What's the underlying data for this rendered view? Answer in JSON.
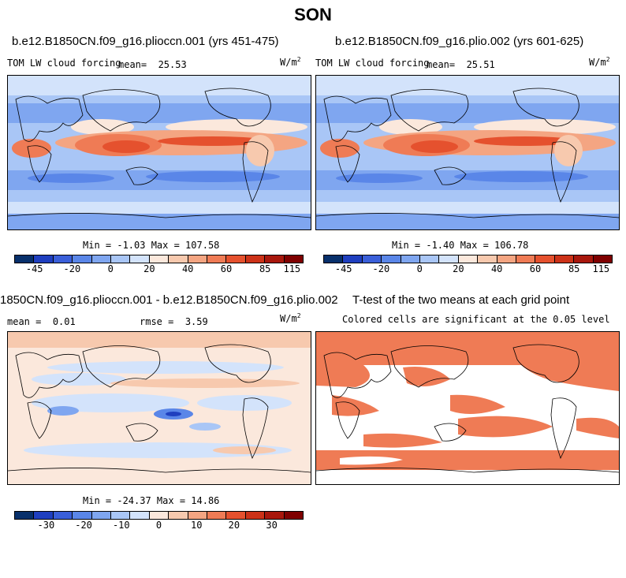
{
  "figure_title": "SON",
  "panels": [
    {
      "title": "b.e12.B1850CN.f09_g16.plioccn.001 (yrs 451-475)",
      "variable": "TOM LW cloud forcing",
      "stat_left_label": "mean=",
      "stat_left_value": "25.53",
      "stat_right_label": "",
      "stat_right_value": "",
      "units_base": "W/m",
      "units_exp": "2",
      "min_text": "Min =  -1.03 Max = 107.58"
    },
    {
      "title": "b.e12.B1850CN.f09_g16.plio.002 (yrs 601-625)",
      "variable": "TOM LW cloud forcing",
      "stat_left_label": "mean=",
      "stat_left_value": "25.51",
      "stat_right_label": "",
      "stat_right_value": "",
      "units_base": "W/m",
      "units_exp": "2",
      "min_text": "Min =  -1.40 Max = 106.78"
    },
    {
      "title": "1850CN.f09_g16.plioccn.001 - b.e12.B1850CN.f09_g16.plio.002",
      "variable": "",
      "stat_left_label": "mean =",
      "stat_left_value": "0.01",
      "stat_right_label": "rmse =",
      "stat_right_value": "3.59",
      "units_base": "W/m",
      "units_exp": "2",
      "min_text": "Min = -24.37 Max =  14.86"
    },
    {
      "title": "T-test of the two means at each grid point",
      "subtitle": "Colored cells are significant at the 0.05 level"
    }
  ],
  "colorbars": {
    "main": {
      "colors": [
        "#08306b",
        "#1f3fbf",
        "#3a5fd9",
        "#5a86e8",
        "#7fa6f0",
        "#a9c6f6",
        "#d3e3fb",
        "#fbe8dc",
        "#f7c9ae",
        "#f4a582",
        "#ef7b55",
        "#e5512e",
        "#cc3218",
        "#a8170c",
        "#7f0000"
      ],
      "tick_labels": [
        "-45",
        "-20",
        "0",
        "20",
        "40",
        "60",
        "85",
        "115"
      ]
    },
    "diff": {
      "colors": [
        "#08306b",
        "#1f3fbf",
        "#3a5fd9",
        "#5a86e8",
        "#7fa6f0",
        "#a9c6f6",
        "#d3e3fb",
        "#fbe8dc",
        "#f7c9ae",
        "#f4a582",
        "#ef7b55",
        "#e5512e",
        "#cc3218",
        "#a8170c",
        "#7f0000"
      ],
      "tick_labels": [
        "-30",
        "-20",
        "-10",
        "0",
        "10",
        "20",
        "30"
      ]
    }
  },
  "chart_data": [
    {
      "type": "heatmap",
      "title": "b.e12.B1850CN.f09_g16.plioccn.001 (yrs 451-475)",
      "variable": "TOM LW cloud forcing",
      "units": "W/m^2",
      "mean": 25.53,
      "min": -1.03,
      "max": 107.58,
      "color_levels": [
        -45,
        -20,
        0,
        20,
        40,
        60,
        85,
        115
      ]
    },
    {
      "type": "heatmap",
      "title": "b.e12.B1850CN.f09_g16.plio.002 (yrs 601-625)",
      "variable": "TOM LW cloud forcing",
      "units": "W/m^2",
      "mean": 25.51,
      "min": -1.4,
      "max": 106.78,
      "color_levels": [
        -45,
        -20,
        0,
        20,
        40,
        60,
        85,
        115
      ]
    },
    {
      "type": "heatmap",
      "title": "1850CN.f09_g16.plioccn.001 - b.e12.B1850CN.f09_g16.plio.002",
      "units": "W/m^2",
      "mean": 0.01,
      "rmse": 3.59,
      "min": -24.37,
      "max": 14.86,
      "color_levels": [
        -30,
        -20,
        -10,
        0,
        10,
        20,
        30
      ]
    },
    {
      "type": "heatmap",
      "title": "T-test of the two means at each grid point",
      "note": "Colored cells are significant at the 0.05 level"
    }
  ]
}
